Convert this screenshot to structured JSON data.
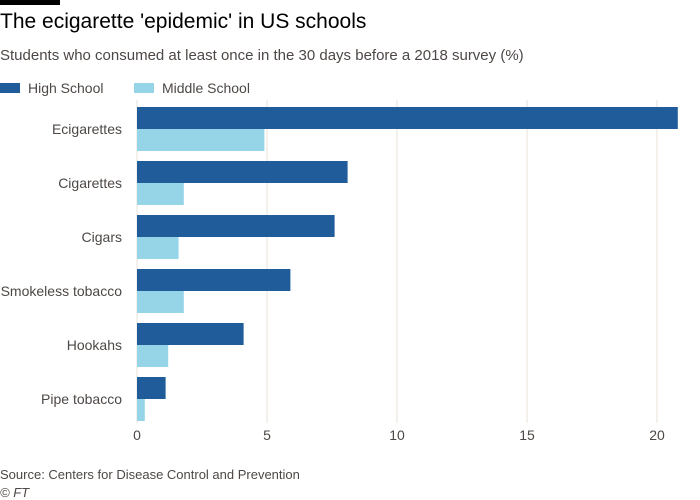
{
  "header": {
    "title": "The ecigarette 'epidemic' in US schools",
    "subtitle": "Students who consumed at least once in the 30 days before a 2018 survey (%)"
  },
  "footer": {
    "source": "Source: Centers for Disease Control and Prevention",
    "credit": "© FT"
  },
  "colors": {
    "high_school": "#1f5c99",
    "middle_school": "#96d4e8",
    "gridline": "#e9e2da",
    "text": "#4d4845"
  },
  "chart_data": {
    "type": "bar",
    "orientation": "horizontal",
    "title": "The ecigarette 'epidemic' in US schools",
    "subtitle": "Students who consumed at least once in the 30 days before a 2018 survey (%)",
    "categories": [
      "Ecigarettes",
      "Cigarettes",
      "Cigars",
      "Smokeless tobacco",
      "Hookahs",
      "Pipe tobacco"
    ],
    "series": [
      {
        "name": "High School",
        "values": [
          20.8,
          8.1,
          7.6,
          5.9,
          4.1,
          1.1
        ]
      },
      {
        "name": "Middle School",
        "values": [
          4.9,
          1.8,
          1.6,
          1.8,
          1.2,
          0.3
        ]
      }
    ],
    "xlim": [
      0,
      21
    ],
    "xticks": [
      0,
      5,
      10,
      15,
      20
    ],
    "xlabel": "",
    "ylabel": "",
    "grid": true,
    "legend": "top-left"
  }
}
